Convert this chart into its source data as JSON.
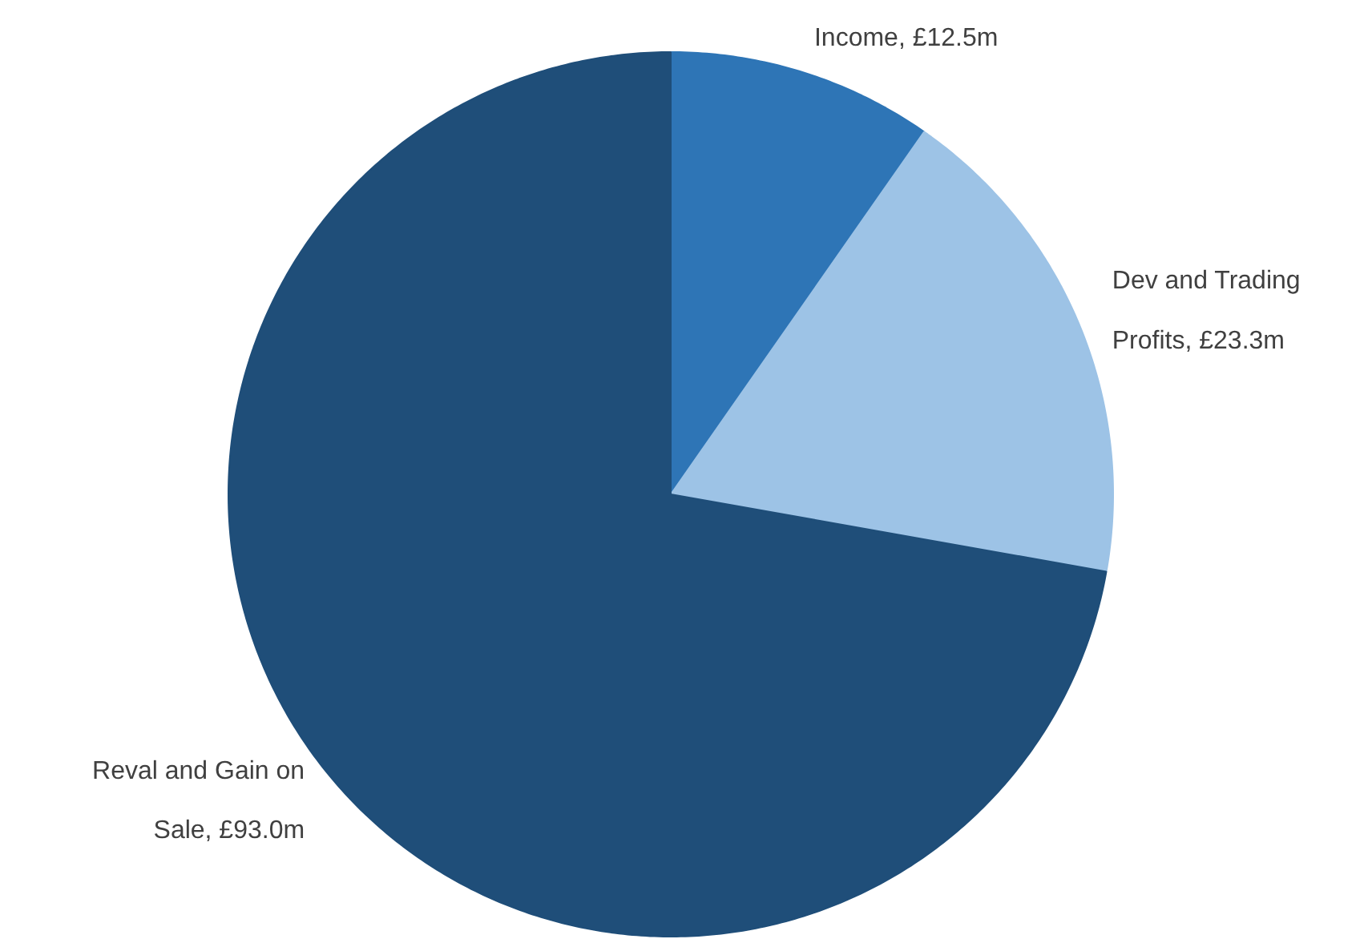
{
  "chart_data": {
    "type": "pie",
    "categories": [
      "Income, £12.5m",
      "Dev and Trading Profits, £23.3m",
      "Reval and Gain on Sale, £93.0m"
    ],
    "values": [
      12.5,
      23.3,
      93.0
    ],
    "colors": [
      "#2e75b6",
      "#9dc3e6",
      "#1f4e79"
    ]
  }
}
